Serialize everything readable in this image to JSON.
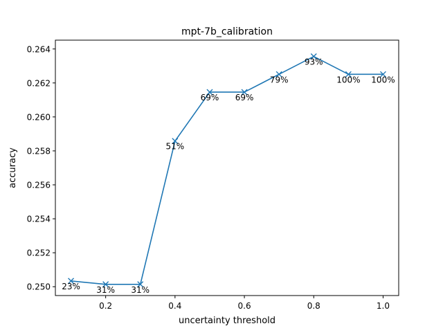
{
  "chart_data": {
    "type": "line",
    "title": "mpt-7b_calibration",
    "xlabel": "uncertainty threshold",
    "ylabel": "accuracy",
    "xlim": [
      0.055,
      1.045
    ],
    "ylim": [
      0.24948,
      0.26452
    ],
    "x_ticks": [
      0.2,
      0.4,
      0.6,
      0.8,
      1.0
    ],
    "x_tick_labels": [
      "0.2",
      "0.4",
      "0.6",
      "0.8",
      "1.0"
    ],
    "y_ticks": [
      0.25,
      0.252,
      0.254,
      0.256,
      0.258,
      0.26,
      0.262,
      0.264
    ],
    "y_tick_labels": [
      "0.250",
      "0.252",
      "0.254",
      "0.256",
      "0.258",
      "0.260",
      "0.262",
      "0.264"
    ],
    "grid": false,
    "series": [
      {
        "marker": "x",
        "color": "#1f77b4",
        "x": [
          0.1,
          0.2,
          0.3,
          0.4,
          0.5,
          0.6,
          0.7,
          0.8,
          0.9,
          1.0
        ],
        "y": [
          0.25034,
          0.25014,
          0.25014,
          0.25858,
          0.26146,
          0.26146,
          0.26251,
          0.26356,
          0.26251,
          0.26251
        ],
        "labels": [
          "23%",
          "31%",
          "31%",
          "51%",
          "69%",
          "69%",
          "79%",
          "93%",
          "100%",
          "100%"
        ]
      }
    ]
  }
}
